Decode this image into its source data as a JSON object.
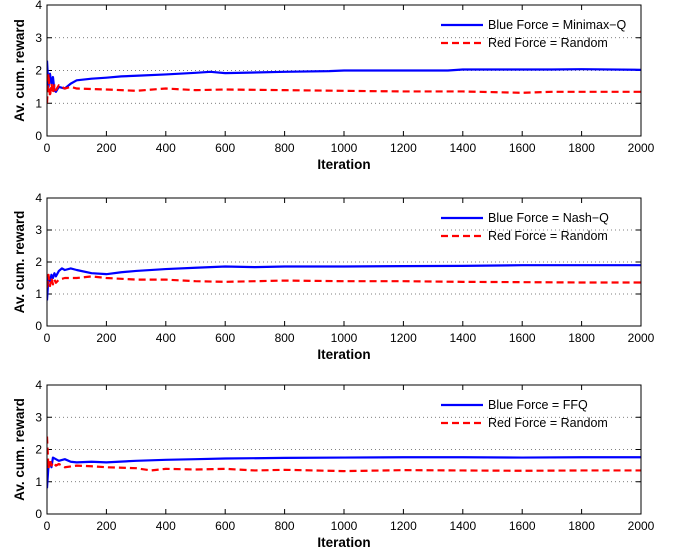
{
  "chart_data": [
    {
      "type": "line",
      "xlabel": "Iteration",
      "ylabel": "Av. cum. reward",
      "xlim": [
        0,
        2000
      ],
      "ylim": [
        0,
        4
      ],
      "xticks": [
        0,
        200,
        400,
        600,
        800,
        1000,
        1200,
        1400,
        1600,
        1800,
        2000
      ],
      "yticks": [
        0,
        1,
        2,
        3,
        4
      ],
      "grid": "horizontal-dotted",
      "legend_position": "top-right",
      "series": [
        {
          "name": "Blue Force = Minimax−Q",
          "color": "#0000ff",
          "style": "solid",
          "points": [
            [
              0,
              2.3
            ],
            [
              5,
              1.5
            ],
            [
              10,
              1.9
            ],
            [
              15,
              1.6
            ],
            [
              20,
              1.8
            ],
            [
              25,
              1.4
            ],
            [
              30,
              1.35
            ],
            [
              40,
              1.5
            ],
            [
              60,
              1.45
            ],
            [
              80,
              1.6
            ],
            [
              100,
              1.7
            ],
            [
              150,
              1.75
            ],
            [
              200,
              1.78
            ],
            [
              250,
              1.82
            ],
            [
              300,
              1.84
            ],
            [
              400,
              1.88
            ],
            [
              500,
              1.93
            ],
            [
              550,
              1.96
            ],
            [
              600,
              1.92
            ],
            [
              800,
              1.96
            ],
            [
              950,
              1.98
            ],
            [
              1000,
              2.0
            ],
            [
              1350,
              2.0
            ],
            [
              1400,
              2.03
            ],
            [
              1700,
              2.03
            ],
            [
              1800,
              2.04
            ],
            [
              2000,
              2.02
            ]
          ]
        },
        {
          "name": "Red Force = Random",
          "color": "#ff0000",
          "style": "dashed",
          "points": [
            [
              0,
              1.0
            ],
            [
              5,
              1.9
            ],
            [
              10,
              1.2
            ],
            [
              15,
              1.6
            ],
            [
              20,
              1.3
            ],
            [
              25,
              1.55
            ],
            [
              30,
              1.4
            ],
            [
              40,
              1.55
            ],
            [
              60,
              1.45
            ],
            [
              80,
              1.5
            ],
            [
              100,
              1.45
            ],
            [
              200,
              1.42
            ],
            [
              300,
              1.38
            ],
            [
              400,
              1.45
            ],
            [
              500,
              1.4
            ],
            [
              600,
              1.42
            ],
            [
              800,
              1.4
            ],
            [
              1000,
              1.38
            ],
            [
              1200,
              1.36
            ],
            [
              1400,
              1.36
            ],
            [
              1600,
              1.32
            ],
            [
              1700,
              1.35
            ],
            [
              2000,
              1.35
            ]
          ]
        }
      ]
    },
    {
      "type": "line",
      "xlabel": "Iteration",
      "ylabel": "Av. cum. reward",
      "xlim": [
        0,
        2000
      ],
      "ylim": [
        0,
        4
      ],
      "xticks": [
        0,
        200,
        400,
        600,
        800,
        1000,
        1200,
        1400,
        1600,
        1800,
        2000
      ],
      "yticks": [
        0,
        1,
        2,
        3,
        4
      ],
      "grid": "horizontal-dotted",
      "legend_position": "top-right",
      "series": [
        {
          "name": "Blue Force = Nash−Q",
          "color": "#0000ff",
          "style": "solid",
          "points": [
            [
              0,
              0.8
            ],
            [
              5,
              1.55
            ],
            [
              10,
              1.4
            ],
            [
              15,
              1.6
            ],
            [
              20,
              1.5
            ],
            [
              25,
              1.65
            ],
            [
              30,
              1.55
            ],
            [
              40,
              1.72
            ],
            [
              50,
              1.8
            ],
            [
              60,
              1.75
            ],
            [
              80,
              1.8
            ],
            [
              100,
              1.75
            ],
            [
              150,
              1.65
            ],
            [
              200,
              1.62
            ],
            [
              250,
              1.68
            ],
            [
              300,
              1.72
            ],
            [
              400,
              1.78
            ],
            [
              500,
              1.82
            ],
            [
              600,
              1.86
            ],
            [
              700,
              1.84
            ],
            [
              800,
              1.86
            ],
            [
              1000,
              1.86
            ],
            [
              1200,
              1.87
            ],
            [
              1400,
              1.88
            ],
            [
              1600,
              1.9
            ],
            [
              1800,
              1.9
            ],
            [
              2000,
              1.9
            ]
          ]
        },
        {
          "name": "Red Force = Random",
          "color": "#ff0000",
          "style": "dashed",
          "points": [
            [
              0,
              1.2
            ],
            [
              5,
              1.6
            ],
            [
              10,
              1.25
            ],
            [
              15,
              1.5
            ],
            [
              20,
              1.3
            ],
            [
              25,
              1.45
            ],
            [
              30,
              1.35
            ],
            [
              40,
              1.45
            ],
            [
              60,
              1.5
            ],
            [
              100,
              1.5
            ],
            [
              150,
              1.55
            ],
            [
              200,
              1.5
            ],
            [
              300,
              1.45
            ],
            [
              400,
              1.45
            ],
            [
              500,
              1.4
            ],
            [
              600,
              1.38
            ],
            [
              800,
              1.42
            ],
            [
              1000,
              1.4
            ],
            [
              1200,
              1.4
            ],
            [
              1400,
              1.38
            ],
            [
              1600,
              1.37
            ],
            [
              1800,
              1.36
            ],
            [
              2000,
              1.36
            ]
          ]
        }
      ]
    },
    {
      "type": "line",
      "xlabel": "Iteration",
      "ylabel": "Av. cum. reward",
      "xlim": [
        0,
        2000
      ],
      "ylim": [
        0,
        4
      ],
      "xticks": [
        0,
        200,
        400,
        600,
        800,
        1000,
        1200,
        1400,
        1600,
        1800,
        2000
      ],
      "yticks": [
        0,
        1,
        2,
        3,
        4
      ],
      "grid": "horizontal-dotted",
      "legend_position": "top-right",
      "series": [
        {
          "name": "Blue Force = FFQ",
          "color": "#0000ff",
          "style": "solid",
          "points": [
            [
              0,
              0.8
            ],
            [
              5,
              1.5
            ],
            [
              10,
              1.6
            ],
            [
              15,
              1.45
            ],
            [
              20,
              1.75
            ],
            [
              30,
              1.7
            ],
            [
              40,
              1.65
            ],
            [
              60,
              1.7
            ],
            [
              80,
              1.62
            ],
            [
              100,
              1.6
            ],
            [
              150,
              1.62
            ],
            [
              200,
              1.6
            ],
            [
              300,
              1.65
            ],
            [
              400,
              1.68
            ],
            [
              500,
              1.7
            ],
            [
              600,
              1.72
            ],
            [
              800,
              1.74
            ],
            [
              1000,
              1.75
            ],
            [
              1200,
              1.76
            ],
            [
              1400,
              1.76
            ],
            [
              1600,
              1.75
            ],
            [
              1800,
              1.76
            ],
            [
              2000,
              1.76
            ]
          ]
        },
        {
          "name": "Red Force = Random",
          "color": "#ff0000",
          "style": "dashed",
          "points": [
            [
              0,
              2.4
            ],
            [
              5,
              1.4
            ],
            [
              10,
              1.7
            ],
            [
              15,
              1.5
            ],
            [
              20,
              1.6
            ],
            [
              30,
              1.5
            ],
            [
              40,
              1.55
            ],
            [
              60,
              1.45
            ],
            [
              100,
              1.5
            ],
            [
              150,
              1.48
            ],
            [
              200,
              1.45
            ],
            [
              300,
              1.42
            ],
            [
              350,
              1.35
            ],
            [
              400,
              1.4
            ],
            [
              500,
              1.38
            ],
            [
              600,
              1.4
            ],
            [
              700,
              1.35
            ],
            [
              800,
              1.37
            ],
            [
              1000,
              1.33
            ],
            [
              1200,
              1.36
            ],
            [
              1400,
              1.35
            ],
            [
              1600,
              1.34
            ],
            [
              1800,
              1.35
            ],
            [
              2000,
              1.35
            ]
          ]
        }
      ]
    }
  ]
}
